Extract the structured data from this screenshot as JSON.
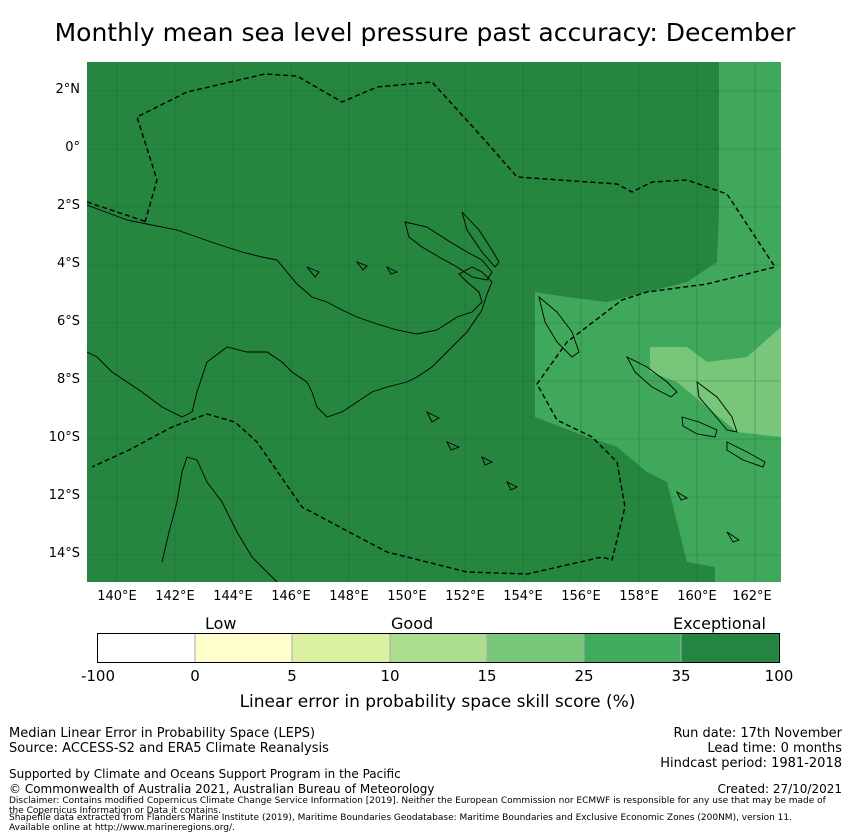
{
  "title": "Monthly mean sea level pressure past accuracy: December",
  "map": {
    "lat_labels": [
      "2°N",
      "0°",
      "2°S",
      "4°S",
      "6°S",
      "8°S",
      "10°S",
      "12°S",
      "14°S"
    ],
    "lon_labels": [
      "140°E",
      "142°E",
      "144°E",
      "146°E",
      "148°E",
      "150°E",
      "152°E",
      "154°E",
      "156°E",
      "158°E",
      "160°E",
      "162°E"
    ],
    "colors": {
      "exceptional_dark": "#26853f",
      "band_25_35": "#3fa85a",
      "band_15_25": "#78c679",
      "border": "#000000"
    }
  },
  "legend": {
    "category_labels": [
      "Low",
      "Good",
      "Exceptional"
    ],
    "ticks": [
      "-100",
      "0",
      "5",
      "10",
      "15",
      "25",
      "35",
      "100"
    ],
    "colors": [
      "#ffffff",
      "#ffffcc",
      "#d9f0a3",
      "#addd8e",
      "#78c679",
      "#41ab5d",
      "#238443"
    ],
    "title": "Linear error in probability space skill score (%)"
  },
  "footer": {
    "left_line1": "Median Linear Error in Probability Space (LEPS)",
    "left_line2": "Source: ACCESS-S2 and ERA5 Climate Reanalysis",
    "right_line1": "Run date: 17th November",
    "right_line2": "Lead time: 0 months",
    "right_line3": "Hindcast period: 1981-2018",
    "supported": "Supported by Climate and Oceans Support Program in the Pacific",
    "copyright": "© Commonwealth of Australia 2021, Australian Bureau of Meteorology",
    "created": "Created: 27/10/2021",
    "disclaimer1": "Disclaimer: Contains modified Copernicus Climate Change Service Information [2019]. Neither the European Commission nor ECMWF is responsible for any use that may be made of",
    "disclaimer2": "the Copernicus Information or Data it contains.",
    "disclaimer3": "Shapefile data extracted from Flanders Marine Institute (2019), Maritime Boundaries Geodatabase: Maritime Boundaries and Exclusive Economic Zones (200NM), version 11.",
    "disclaimer4": "Available online at http://www.marineregions.org/."
  }
}
